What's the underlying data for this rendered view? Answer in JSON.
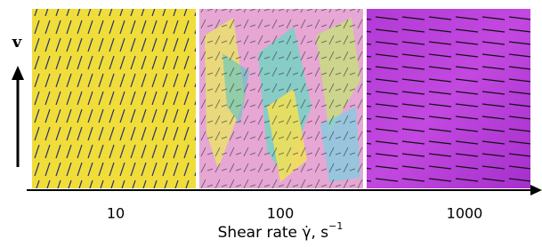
{
  "velocity_label": "v",
  "x_axis": {
    "ticks": [
      "10",
      "100",
      "1000"
    ],
    "label": "Shear rate γ̇, s",
    "label_superscript": "−1"
  }
}
